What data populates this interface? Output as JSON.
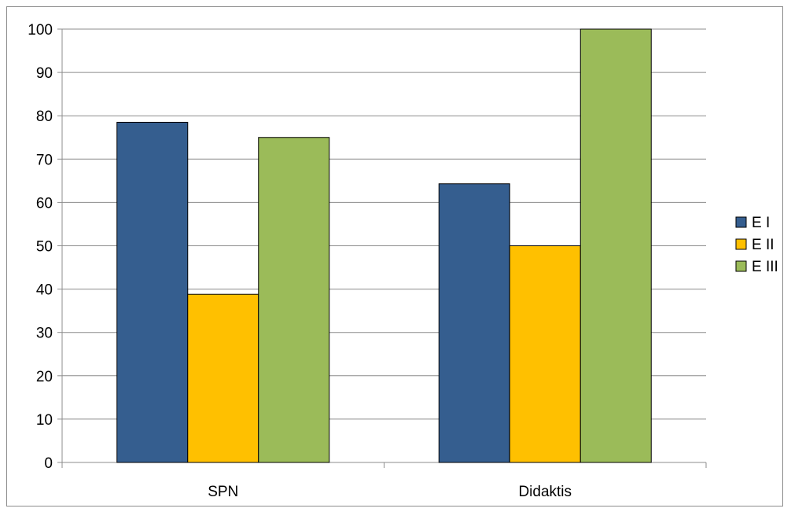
{
  "chart_data": {
    "type": "bar",
    "categories": [
      "SPN",
      "Didaktis"
    ],
    "series": [
      {
        "name": "E I",
        "values": [
          78.5,
          64.3
        ],
        "color": "#355e8f"
      },
      {
        "name": "E II",
        "values": [
          38.8,
          50.0
        ],
        "color": "#ffc000"
      },
      {
        "name": "E III",
        "values": [
          75.0,
          100.0
        ],
        "color": "#9bbb59"
      }
    ],
    "title": "",
    "xlabel": "",
    "ylabel": "",
    "ylim": [
      0,
      100
    ],
    "yticks": [
      "0",
      "10",
      "20",
      "30",
      "40",
      "50",
      "60",
      "70",
      "80",
      "90",
      "100"
    ],
    "grid": true,
    "legend_position": "right"
  }
}
